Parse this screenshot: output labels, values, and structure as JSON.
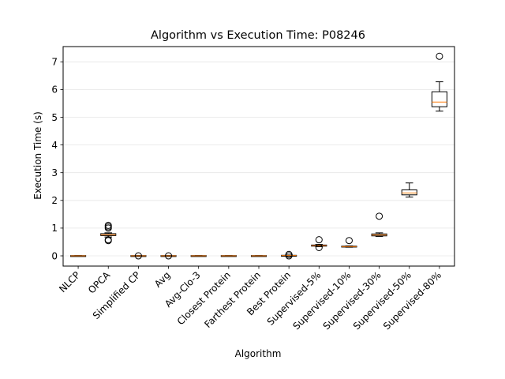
{
  "chart_data": {
    "type": "boxplot",
    "title": "Algorithm vs Execution Time: P08246",
    "xlabel": "Algorithm",
    "ylabel": "Execution Time (s)",
    "ylim": [
      -0.37,
      7.55
    ],
    "yticks": [
      0,
      1,
      2,
      3,
      4,
      5,
      6,
      7
    ],
    "grid": "horizontal",
    "colors": {
      "box": "#000000",
      "median": "#ff7f0e",
      "grid": "#e6e6e6"
    },
    "categories": [
      "NLCP",
      "OPCA",
      "Simplified CP",
      "Avg",
      "Avg-Clo-3",
      "Closest Protein",
      "Farthest Protein",
      "Best Protein",
      "Supervised-5%",
      "Supervised-10%",
      "Supervised-30%",
      "Supervised-50%",
      "Supervised-80%"
    ],
    "boxes": [
      {
        "whislo": 0.0,
        "q1": 0.0,
        "med": 0.0,
        "q3": 0.01,
        "whishi": 0.01,
        "fliers": []
      },
      {
        "whislo": 0.68,
        "q1": 0.73,
        "med": 0.76,
        "q3": 0.8,
        "whishi": 0.83,
        "fliers": [
          0.55,
          0.58,
          1.0,
          1.05,
          1.1
        ]
      },
      {
        "whislo": 0.0,
        "q1": 0.0,
        "med": 0.0,
        "q3": 0.01,
        "whishi": 0.01,
        "fliers": [
          0.0
        ]
      },
      {
        "whislo": 0.0,
        "q1": 0.0,
        "med": 0.0,
        "q3": 0.01,
        "whishi": 0.01,
        "fliers": [
          0.0
        ]
      },
      {
        "whislo": 0.0,
        "q1": 0.0,
        "med": 0.0,
        "q3": 0.01,
        "whishi": 0.01,
        "fliers": []
      },
      {
        "whislo": 0.0,
        "q1": 0.0,
        "med": 0.0,
        "q3": 0.01,
        "whishi": 0.01,
        "fliers": []
      },
      {
        "whislo": 0.0,
        "q1": 0.0,
        "med": 0.0,
        "q3": 0.01,
        "whishi": 0.01,
        "fliers": []
      },
      {
        "whislo": 0.0,
        "q1": 0.0,
        "med": 0.01,
        "q3": 0.02,
        "whishi": 0.03,
        "fliers": [
          0.0,
          0.05
        ]
      },
      {
        "whislo": 0.33,
        "q1": 0.35,
        "med": 0.37,
        "q3": 0.39,
        "whishi": 0.41,
        "fliers": [
          0.3,
          0.58
        ]
      },
      {
        "whislo": 0.31,
        "q1": 0.32,
        "med": 0.33,
        "q3": 0.35,
        "whishi": 0.36,
        "fliers": [
          0.55
        ]
      },
      {
        "whislo": 0.7,
        "q1": 0.72,
        "med": 0.75,
        "q3": 0.79,
        "whishi": 0.83,
        "fliers": [
          1.43
        ]
      },
      {
        "whislo": 2.12,
        "q1": 2.2,
        "med": 2.27,
        "q3": 2.38,
        "whishi": 2.63,
        "fliers": []
      },
      {
        "whislo": 5.22,
        "q1": 5.38,
        "med": 5.55,
        "q3": 5.92,
        "whishi": 6.28,
        "fliers": [
          7.2
        ]
      }
    ]
  }
}
